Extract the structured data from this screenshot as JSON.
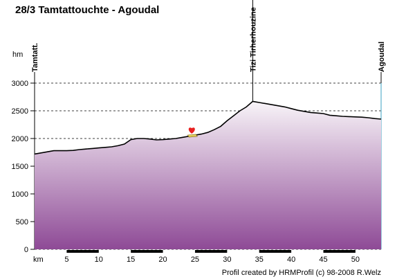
{
  "chart_data": {
    "type": "area",
    "title": "28/3 Tamtattouchte - Agoudal",
    "ylabel": "hm",
    "xlabel": "km",
    "xlim": [
      0,
      54
    ],
    "ylim": [
      0,
      3000
    ],
    "yticks": [
      0,
      500,
      1000,
      1500,
      2000,
      2500,
      3000
    ],
    "xticks": [
      5,
      10,
      15,
      20,
      25,
      30,
      35,
      40,
      45,
      50
    ],
    "grid": true,
    "series": [
      {
        "x": [
          0,
          1,
          2,
          3,
          4,
          5,
          6,
          7,
          8,
          9,
          10,
          11,
          12,
          13,
          14,
          15,
          16,
          17,
          18,
          19,
          20,
          21,
          22,
          23,
          24,
          25,
          26,
          27,
          28,
          29,
          30,
          31,
          32,
          33,
          34,
          35,
          36,
          37,
          38,
          39,
          40,
          41,
          42,
          43,
          44,
          45,
          46,
          47,
          48,
          49,
          50,
          51,
          52,
          53,
          54
        ],
        "y": [
          1720,
          1740,
          1760,
          1780,
          1780,
          1780,
          1785,
          1800,
          1810,
          1820,
          1830,
          1840,
          1850,
          1870,
          1900,
          1980,
          2000,
          2000,
          1990,
          1975,
          1980,
          1990,
          2000,
          2020,
          2040,
          2060,
          2080,
          2110,
          2160,
          2220,
          2320,
          2410,
          2500,
          2570,
          2670,
          2650,
          2630,
          2610,
          2590,
          2570,
          2540,
          2510,
          2490,
          2470,
          2460,
          2450,
          2420,
          2410,
          2400,
          2395,
          2390,
          2385,
          2375,
          2360,
          2350
        ]
      }
    ],
    "waypoints": [
      {
        "label": "Tamtatt.",
        "km": 0
      },
      {
        "label": "Tizi Tirherhouzine",
        "km": 34
      },
      {
        "label": "Agoudal",
        "km": 54
      }
    ],
    "credit": "Profil created by HRMProfil (c) 98-2008 R.Welz",
    "colors": {
      "fill_top": "#f8f4f8",
      "fill_bottom": "#8e4a96",
      "line": "#000000",
      "marker": "#e82020",
      "axis_right": "#3aa0c0"
    }
  }
}
